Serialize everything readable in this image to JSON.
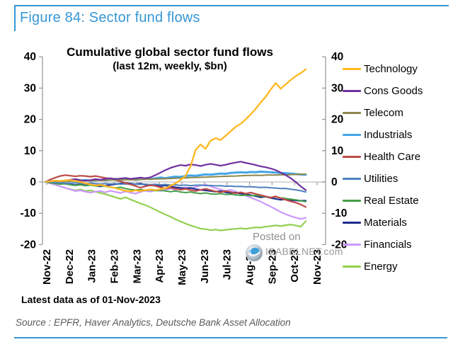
{
  "figure": {
    "title": "Figure 84: Sector fund flows"
  },
  "chart": {
    "title": "Cumulative global sector fund flows",
    "subtitle": "(last 12m, weekly, $bn)",
    "footnote": "Latest data as of 01-Nov-2023",
    "source": "Source : EPFR, Haver Analytics, Deutsche Bank Asset Allocation",
    "watermark": {
      "line1": "Posted on",
      "line2": "ISABELNET.com"
    }
  },
  "colors": {
    "accent_blue": "#3696d4",
    "axis": "#9a9a9a",
    "zero_line": "#c8c8c8",
    "tick_text": "#000000",
    "watermark": "#8f8f8f"
  },
  "chart_data": {
    "type": "line",
    "title": "Cumulative global sector fund flows",
    "subtitle": "(last 12m, weekly, $bn)",
    "x_unit": "weeks (Nov-2022 to 01-Nov-2023)",
    "x_tick_labels": [
      "Nov-22",
      "Dec-22",
      "Jan-23",
      "Feb-23",
      "Mar-23",
      "Apr-23",
      "May-23",
      "Jun-23",
      "Jul-23",
      "Aug-23",
      "Sep-23",
      "Oct-23",
      "Nov-23"
    ],
    "y_ticks": [
      40,
      30,
      20,
      10,
      0,
      -10,
      -20
    ],
    "ylim": [
      -20,
      40
    ],
    "dual_axis": true,
    "grid": "zero-line-only",
    "legend_position": "right",
    "series": [
      {
        "name": "Technology",
        "color": "#ffb81e",
        "width": 2.3,
        "values": [
          0,
          0.2,
          0.4,
          0.3,
          0.5,
          0.6,
          0.3,
          0,
          -0.4,
          -0.8,
          -1.1,
          -0.9,
          -1.3,
          -1.6,
          -2,
          -2.4,
          -2.8,
          -3,
          -2.7,
          -2.9,
          -2.6,
          -2.4,
          -2.6,
          -2.3,
          -2,
          -1.2,
          -0.4,
          0.6,
          2,
          5,
          10.2,
          12,
          10.6,
          13.2,
          14,
          13.4,
          14.8,
          16.2,
          17.6,
          18.6,
          20,
          21.6,
          23.4,
          25.4,
          27.2,
          29.6,
          31.6,
          29.8,
          31.2,
          32.6,
          33.8,
          34.8,
          36
        ]
      },
      {
        "name": "Cons Goods",
        "color": "#7030a0",
        "width": 2.2,
        "values": [
          0,
          0.2,
          0.4,
          0.3,
          0.5,
          0.7,
          0.9,
          0.6,
          0.4,
          0.6,
          0.9,
          0.7,
          1,
          1.2,
          0.9,
          1.1,
          1.3,
          1,
          1.2,
          1.4,
          1.2,
          1.5,
          2.2,
          3,
          3.8,
          4.5,
          5,
          5.4,
          5.2,
          5.6,
          5.4,
          5.1,
          5.5,
          5.8,
          5.5,
          5.2,
          5.5,
          5.9,
          6.2,
          6.5,
          6.1,
          5.8,
          5.4,
          5,
          4.7,
          4.3,
          3.8,
          3,
          2.2,
          1.2,
          0,
          -1.4,
          -2.6
        ]
      },
      {
        "name": "Telecom",
        "color": "#8e884a",
        "width": 2,
        "values": [
          0,
          0.1,
          0.2,
          0.15,
          0.3,
          0.25,
          0.4,
          0.35,
          0.45,
          0.4,
          0.5,
          0.55,
          0.5,
          0.6,
          0.65,
          0.6,
          0.7,
          0.75,
          0.7,
          0.8,
          0.85,
          0.9,
          0.95,
          1,
          1.05,
          1.1,
          1.2,
          1.25,
          1.3,
          1.4,
          1.45,
          1.5,
          1.55,
          1.6,
          1.7,
          1.75,
          1.8,
          1.85,
          1.9,
          2,
          2.05,
          2.1,
          2.15,
          2.1,
          2.2,
          2.25,
          2.2,
          2.3,
          2.25,
          2.35,
          2.4,
          2.45,
          2.5
        ]
      },
      {
        "name": "Industrials",
        "color": "#45a5e6",
        "width": 3,
        "values": [
          0,
          0.2,
          0.3,
          0.2,
          0.4,
          0.3,
          0.5,
          0.4,
          0.6,
          0.4,
          0.5,
          0.7,
          0.5,
          0.8,
          1,
          0.7,
          1.1,
          0.9,
          0.7,
          0.9,
          1.1,
          0.9,
          1.2,
          1.4,
          1.2,
          1.5,
          1.7,
          1.6,
          1.9,
          2.1,
          2,
          2.2,
          2.4,
          2.3,
          2.5,
          2.7,
          2.6,
          2.9,
          3,
          3.1,
          3,
          3.2,
          3.1,
          3.3,
          3.2,
          3.1,
          3,
          2.9,
          2.8,
          2.7,
          2.5,
          2.4,
          2.3
        ]
      },
      {
        "name": "Health Care",
        "color": "#be4b48",
        "width": 2.2,
        "values": [
          0,
          0.8,
          1.4,
          1.9,
          2.2,
          2,
          1.8,
          2,
          1.9,
          1.7,
          1.9,
          1.6,
          1.3,
          1,
          0.6,
          0.2,
          -0.3,
          -0.8,
          -1.3,
          -1.8,
          -1.4,
          -1,
          -1.3,
          -1.7,
          -2.1,
          -1.8,
          -2.2,
          -2.5,
          -2.2,
          -2.6,
          -2.9,
          -2.5,
          -2.2,
          -2.6,
          -3,
          -3.3,
          -2.9,
          -3.2,
          -3.6,
          -3.3,
          -3.7,
          -3.4,
          -3.8,
          -4.2,
          -4.6,
          -5,
          -4.6,
          -5.2,
          -5.7,
          -6.2,
          -6.6,
          -7.2,
          -8
        ]
      },
      {
        "name": "Utilities",
        "color": "#4f81bd",
        "width": 2,
        "values": [
          0,
          -0.1,
          -0.3,
          -0.2,
          -0.35,
          -0.45,
          -0.3,
          -0.45,
          -0.55,
          -0.4,
          -0.55,
          -0.65,
          -0.5,
          -0.65,
          -0.55,
          -0.7,
          -0.6,
          -0.75,
          -0.65,
          -0.8,
          -0.7,
          -0.85,
          -0.75,
          -0.9,
          -0.8,
          -1,
          -0.9,
          -1.1,
          -1,
          -1.15,
          -1.05,
          -1,
          -1.15,
          -1.1,
          -1.25,
          -1.2,
          -1.35,
          -1.3,
          -1.45,
          -1.4,
          -1.55,
          -1.5,
          -1.65,
          -1.75,
          -1.7,
          -1.85,
          -1.95,
          -2.1,
          -2.05,
          -2.3,
          -2.5,
          -2.8,
          -3.2
        ]
      },
      {
        "name": "Real Estate",
        "color": "#43a047",
        "width": 2,
        "values": [
          0,
          -0.3,
          -0.5,
          -0.7,
          -0.55,
          -0.9,
          -1.1,
          -0.9,
          -1.2,
          -1,
          -1.3,
          -1.1,
          -1.4,
          -1.7,
          -1.9,
          -1.7,
          -2.1,
          -2.4,
          -2.6,
          -2.4,
          -2.7,
          -2.5,
          -2.8,
          -2.6,
          -2.9,
          -3.1,
          -2.9,
          -3.2,
          -3.4,
          -3.2,
          -3.5,
          -3.7,
          -3.5,
          -3.8,
          -3.9,
          -3.7,
          -4,
          -3.9,
          -4.1,
          -4.3,
          -4.2,
          -4.4,
          -4.3,
          -4.5,
          -4.7,
          -4.9,
          -4.8,
          -5.1,
          -5.3,
          -5.5,
          -5.7,
          -6,
          -6.3
        ]
      },
      {
        "name": "Materials",
        "color": "#1f2b8e",
        "width": 2.2,
        "values": [
          0,
          -0.2,
          -0.4,
          -0.3,
          -0.6,
          -0.8,
          -1,
          -0.8,
          -1.1,
          -0.9,
          -1.2,
          -1.4,
          -1.2,
          -0.9,
          -0.7,
          -0.5,
          -0.3,
          -0.5,
          -0.7,
          -0.5,
          -0.9,
          -1.1,
          -0.9,
          -1.3,
          -1.1,
          -1.4,
          -1.7,
          -1.9,
          -2.1,
          -1.9,
          -2.3,
          -2.5,
          -2.7,
          -2.9,
          -3.1,
          -2.9,
          -3.3,
          -3.5,
          -3.4,
          -3.7,
          -3.9,
          -4.2,
          -4.5,
          -4.9,
          -4.7,
          -5.1,
          -5.4,
          -5.7,
          -5.5,
          -5.8,
          -5.9,
          -6,
          -6
        ]
      },
      {
        "name": "Financials",
        "color": "#cc99ff",
        "width": 2.2,
        "values": [
          0,
          -0.4,
          -0.9,
          -1.4,
          -1.9,
          -2.4,
          -2.9,
          -2.7,
          -3.1,
          -3.4,
          -3.1,
          -2.9,
          -3.3,
          -2.8,
          -3.2,
          -3.5,
          -3,
          -3.4,
          -3.7,
          -3.2,
          -2.8,
          -3.1,
          -2.6,
          -2.9,
          -2.5,
          -2.1,
          -2.5,
          -2.1,
          -1.7,
          -2.1,
          -1.6,
          -1.1,
          -0.8,
          -1.4,
          -2,
          -2.4,
          -2.9,
          -2.5,
          -3.1,
          -3.7,
          -4.4,
          -5,
          -5.6,
          -6.3,
          -7.1,
          -7.9,
          -8.7,
          -9.6,
          -10.3,
          -10.9,
          -11.4,
          -11.8,
          -11.5
        ]
      },
      {
        "name": "Energy",
        "color": "#92d050",
        "width": 2.2,
        "values": [
          0,
          -0.4,
          -0.9,
          -1.4,
          -1.9,
          -2.3,
          -2.7,
          -2.4,
          -2.9,
          -2.7,
          -3.1,
          -3.5,
          -3.9,
          -4.4,
          -4.9,
          -5.4,
          -4.9,
          -5.6,
          -6.2,
          -6.9,
          -7.4,
          -8.1,
          -8.9,
          -9.7,
          -10.4,
          -11.1,
          -11.9,
          -12.6,
          -13.3,
          -13.9,
          -14.4,
          -14.9,
          -15.1,
          -15.4,
          -15.2,
          -15.5,
          -15.3,
          -15.1,
          -15,
          -14.8,
          -15,
          -14.7,
          -14.5,
          -14.6,
          -14.3,
          -14.1,
          -13.9,
          -14.1,
          -13.8,
          -13.6,
          -13.9,
          -14.3,
          -12.5
        ]
      }
    ]
  }
}
